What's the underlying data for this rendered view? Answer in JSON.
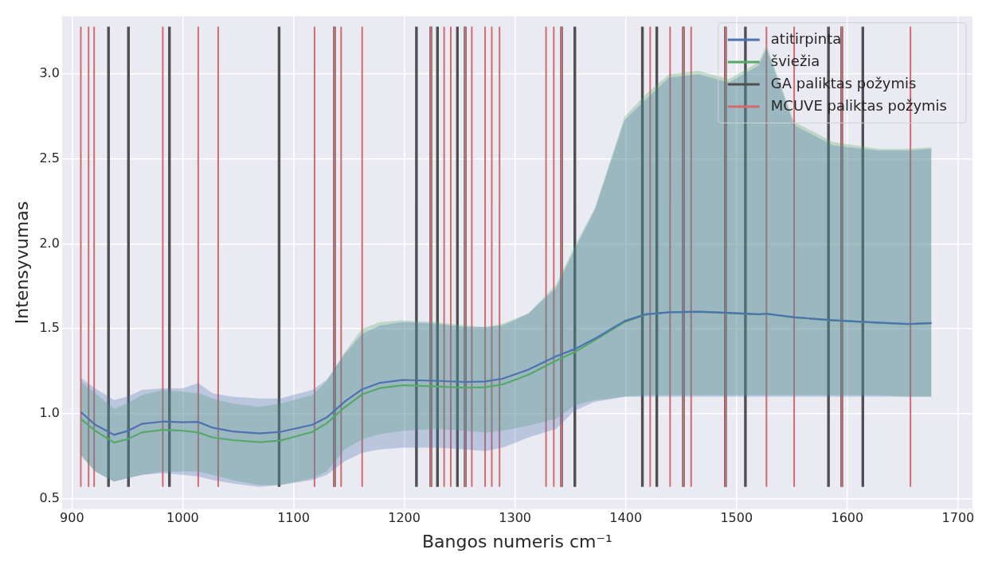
{
  "chart_data": {
    "type": "line",
    "xlabel": "Bangos numeris cm⁻¹",
    "ylabel": "Intensyvumas",
    "x": [
      908,
      921,
      938,
      950,
      963,
      982,
      1000,
      1014,
      1027,
      1045,
      1069,
      1088,
      1117,
      1130,
      1146,
      1162,
      1178,
      1199,
      1228,
      1255,
      1273,
      1289,
      1312,
      1337,
      1354,
      1372,
      1399,
      1418,
      1439,
      1466,
      1493,
      1520,
      1527,
      1552,
      1587,
      1628,
      1655,
      1676
    ],
    "series": [
      {
        "name": "atitirpinta",
        "color": "#4c72b0",
        "values": [
          1.01,
          0.935,
          0.876,
          0.898,
          0.94,
          0.954,
          0.95,
          0.952,
          0.918,
          0.896,
          0.884,
          0.893,
          0.935,
          0.978,
          1.07,
          1.144,
          1.182,
          1.199,
          1.194,
          1.187,
          1.19,
          1.207,
          1.26,
          1.338,
          1.381,
          1.442,
          1.546,
          1.586,
          1.598,
          1.601,
          1.594,
          1.586,
          1.589,
          1.568,
          1.551,
          1.537,
          1.529,
          1.534
        ],
        "lower": [
          0.76,
          0.66,
          0.6,
          0.62,
          0.64,
          0.65,
          0.64,
          0.63,
          0.61,
          0.59,
          0.57,
          0.58,
          0.61,
          0.64,
          0.72,
          0.77,
          0.79,
          0.8,
          0.8,
          0.79,
          0.78,
          0.8,
          0.86,
          0.91,
          1.02,
          1.07,
          1.1,
          1.1,
          1.1,
          1.1,
          1.1,
          1.1,
          1.1,
          1.1,
          1.1,
          1.1,
          1.1,
          1.1
        ],
        "upper": [
          1.21,
          1.15,
          1.08,
          1.1,
          1.14,
          1.15,
          1.15,
          1.18,
          1.12,
          1.1,
          1.09,
          1.09,
          1.14,
          1.2,
          1.35,
          1.47,
          1.52,
          1.54,
          1.53,
          1.51,
          1.51,
          1.52,
          1.59,
          1.74,
          1.97,
          2.2,
          2.73,
          2.85,
          2.98,
          3.0,
          2.95,
          3.05,
          3.15,
          2.7,
          2.58,
          2.55,
          2.55,
          2.56
        ]
      },
      {
        "name": "šviežia",
        "color": "#55a868",
        "values": [
          0.97,
          0.9,
          0.83,
          0.85,
          0.89,
          0.905,
          0.9,
          0.89,
          0.86,
          0.845,
          0.833,
          0.842,
          0.893,
          0.944,
          1.037,
          1.114,
          1.151,
          1.168,
          1.161,
          1.153,
          1.156,
          1.173,
          1.229,
          1.312,
          1.364,
          1.433,
          1.54,
          1.584,
          1.597,
          1.6,
          1.593,
          1.585,
          1.588,
          1.567,
          1.55,
          1.536,
          1.528,
          1.533
        ],
        "lower": [
          0.75,
          0.66,
          0.6,
          0.62,
          0.64,
          0.66,
          0.66,
          0.66,
          0.64,
          0.61,
          0.58,
          0.58,
          0.62,
          0.66,
          0.79,
          0.85,
          0.88,
          0.9,
          0.91,
          0.9,
          0.89,
          0.9,
          0.93,
          0.97,
          1.05,
          1.08,
          1.1,
          1.11,
          1.11,
          1.11,
          1.11,
          1.11,
          1.11,
          1.11,
          1.11,
          1.11,
          1.1,
          1.1
        ],
        "upper": [
          1.19,
          1.12,
          1.03,
          1.06,
          1.11,
          1.14,
          1.13,
          1.12,
          1.09,
          1.06,
          1.04,
          1.06,
          1.11,
          1.19,
          1.36,
          1.5,
          1.54,
          1.55,
          1.54,
          1.52,
          1.51,
          1.53,
          1.59,
          1.76,
          1.99,
          2.21,
          2.75,
          2.88,
          3.0,
          3.02,
          2.97,
          3.07,
          3.17,
          2.72,
          2.6,
          2.56,
          2.56,
          2.57
        ]
      },
      {
        "name": "GA paliktas požymis",
        "color": "#505050",
        "x": [
          933,
          933,
          null,
          951,
          951,
          null,
          988,
          988,
          null,
          1087,
          1087,
          null,
          1137,
          1137,
          null,
          1211,
          1211,
          null,
          1224,
          1224,
          null,
          1230,
          1230,
          null,
          1248,
          1248,
          null,
          1255,
          1255,
          null,
          1342,
          1342,
          null,
          1354,
          1354,
          null,
          1415,
          1415,
          null,
          1428,
          1428,
          null,
          1452,
          1452,
          null,
          1490,
          1490,
          null,
          1508,
          1508,
          null,
          1583,
          1583,
          null,
          1595,
          1595,
          null,
          1614,
          1614
        ],
        "values": [
          0.57,
          3.28,
          null,
          0.57,
          3.28,
          null,
          0.57,
          3.28,
          null,
          0.57,
          3.28,
          null,
          0.57,
          3.28,
          null,
          0.57,
          3.28,
          null,
          0.57,
          3.28,
          null,
          0.57,
          3.28,
          null,
          0.57,
          3.28,
          null,
          0.57,
          3.28,
          null,
          0.57,
          3.28,
          null,
          0.57,
          3.28,
          null,
          0.57,
          3.28,
          null,
          0.57,
          3.28,
          null,
          0.57,
          3.28,
          null,
          0.57,
          3.28,
          null,
          0.57,
          3.28,
          null,
          0.57,
          3.28,
          null,
          0.57,
          3.28,
          null,
          0.57,
          3.28
        ]
      },
      {
        "name": "MCUVE paliktas požymis",
        "color": "#d46a6e",
        "x": [
          908,
          908,
          null,
          915,
          915,
          null,
          920,
          920,
          null,
          982,
          982,
          null,
          1014,
          1014,
          null,
          1032,
          1032,
          null,
          1119,
          1119,
          null,
          1137,
          1137,
          null,
          1143,
          1143,
          null,
          1162,
          1162,
          null,
          1224,
          1224,
          null,
          1236,
          1236,
          null,
          1242,
          1242,
          null,
          1255,
          1255,
          null,
          1261,
          1261,
          null,
          1273,
          1273,
          null,
          1279,
          1279,
          null,
          1286,
          1286,
          null,
          1328,
          1328,
          null,
          1335,
          1335,
          null,
          1342,
          1342,
          null,
          1422,
          1422,
          null,
          1440,
          1440,
          null,
          1452,
          1452,
          null,
          1459,
          1459,
          null,
          1490,
          1490,
          null,
          1527,
          1527,
          null,
          1552,
          1552,
          null,
          1595,
          1595,
          null,
          1657,
          1657
        ],
        "values": [
          0.57,
          3.28,
          null,
          0.57,
          3.28,
          null,
          0.57,
          3.28,
          null,
          0.57,
          3.28,
          null,
          0.57,
          3.28,
          null,
          0.57,
          3.28,
          null,
          0.57,
          3.28,
          null,
          0.57,
          3.28,
          null,
          0.57,
          3.28,
          null,
          0.57,
          3.28,
          null,
          0.57,
          3.28,
          null,
          0.57,
          3.28,
          null,
          0.57,
          3.28,
          null,
          0.57,
          3.28,
          null,
          0.57,
          3.28,
          null,
          0.57,
          3.28,
          null,
          0.57,
          3.28,
          null,
          0.57,
          3.28,
          null,
          0.57,
          3.28,
          null,
          0.57,
          3.28,
          null,
          0.57,
          3.28,
          null,
          0.57,
          3.28,
          null,
          0.57,
          3.28,
          null,
          0.57,
          3.28,
          null,
          0.57,
          3.28,
          null,
          0.57,
          3.28,
          null,
          0.57,
          3.28,
          null,
          0.57,
          3.28,
          null,
          0.57,
          3.28,
          null,
          0.57,
          3.28
        ]
      }
    ],
    "xlim": [
      891,
      1713
    ],
    "ylim": [
      0.44,
      3.34
    ],
    "xticks": [
      900,
      1000,
      1100,
      1200,
      1300,
      1400,
      1500,
      1600,
      1700
    ],
    "yticks": [
      0.5,
      {
        "value": 1,
        "label": "1.0"
      },
      1.5,
      {
        "value": 2,
        "label": "2.0"
      },
      2.5,
      {
        "value": 3,
        "label": "3.0"
      }
    ],
    "grid": true,
    "legend": "top right",
    "marker": "none",
    "line_style": "solid"
  }
}
